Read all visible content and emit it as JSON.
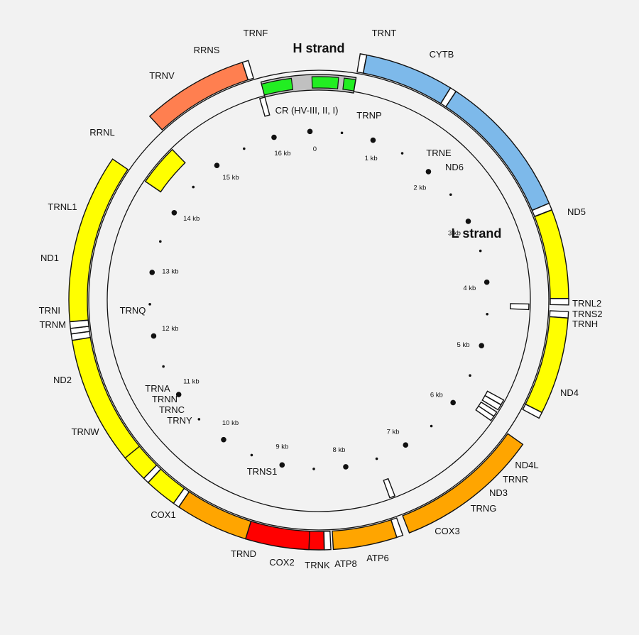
{
  "header": {
    "h_strand": "H strand",
    "l_strand": "L strand"
  },
  "genome_length_kb": 16.569,
  "colors": {
    "rrna": "#7db9ea",
    "complex1": "#ffff00",
    "complex3": "#ff7f50",
    "complex4": "#ffa500",
    "complex5": "#ff0000",
    "control": "#c0c0c0",
    "hv": "#22ee22",
    "trna": "#ffffff"
  },
  "outer_genes": [
    {
      "id": "trnf",
      "label": "TRNF",
      "start": 0.577,
      "end": 0.647,
      "type": "trna"
    },
    {
      "id": "rrns",
      "label": "RRNS",
      "start": 0.648,
      "end": 1.601,
      "type": "rrna"
    },
    {
      "id": "trnv",
      "label": "TRNV",
      "start": 1.602,
      "end": 1.67,
      "type": "trna"
    },
    {
      "id": "rrnl",
      "label": "RRNL",
      "start": 1.671,
      "end": 3.229,
      "type": "rrna"
    },
    {
      "id": "trnl1",
      "label": "TRNL1",
      "start": 3.23,
      "end": 3.304,
      "type": "trna"
    },
    {
      "id": "nd1",
      "label": "ND1",
      "start": 3.307,
      "end": 4.262,
      "type": "complex1"
    },
    {
      "id": "trni",
      "label": "TRNI",
      "start": 4.263,
      "end": 4.331,
      "type": "trna"
    },
    {
      "id": "trnm",
      "label": "TRNM",
      "start": 4.402,
      "end": 4.469,
      "type": "trna"
    },
    {
      "id": "nd2",
      "label": "ND2",
      "start": 4.47,
      "end": 5.511,
      "type": "complex1"
    },
    {
      "id": "trnw",
      "label": "TRNW",
      "start": 5.512,
      "end": 5.579,
      "type": "trna"
    },
    {
      "id": "cox1",
      "label": "COX1",
      "start": 5.904,
      "end": 7.445,
      "type": "complex4"
    },
    {
      "id": "trnd",
      "label": "TRND",
      "start": 7.518,
      "end": 7.585,
      "type": "trna"
    },
    {
      "id": "cox2",
      "label": "COX2",
      "start": 7.586,
      "end": 8.269,
      "type": "complex4"
    },
    {
      "id": "trnk",
      "label": "TRNK",
      "start": 8.295,
      "end": 8.364,
      "type": "trna"
    },
    {
      "id": "atp8",
      "label": "ATP8",
      "start": 8.366,
      "end": 8.572,
      "type": "complex5"
    },
    {
      "id": "atp6",
      "label": "ATP6",
      "start": 8.527,
      "end": 9.207,
      "type": "complex5"
    },
    {
      "id": "cox3",
      "label": "COX3",
      "start": 9.207,
      "end": 9.99,
      "type": "complex4"
    },
    {
      "id": "trng",
      "label": "TRNG",
      "start": 9.991,
      "end": 10.058,
      "type": "trna"
    },
    {
      "id": "nd3",
      "label": "ND3",
      "start": 10.059,
      "end": 10.404,
      "type": "complex1"
    },
    {
      "id": "trnr",
      "label": "TRNR",
      "start": 10.405,
      "end": 10.469,
      "type": "trna"
    },
    {
      "id": "nd4l",
      "label": "ND4L",
      "start": 10.47,
      "end": 10.766,
      "type": "complex1"
    },
    {
      "id": "nd4",
      "label": "ND4",
      "start": 10.76,
      "end": 12.137,
      "type": "complex1"
    },
    {
      "id": "trnh",
      "label": "TRNH",
      "start": 12.138,
      "end": 12.206,
      "type": "trna"
    },
    {
      "id": "trns2",
      "label": "TRNS2",
      "start": 12.207,
      "end": 12.265,
      "type": "trna"
    },
    {
      "id": "trnl2",
      "label": "TRNL2",
      "start": 12.266,
      "end": 12.336,
      "type": "trna"
    },
    {
      "id": "nd5",
      "label": "ND5",
      "start": 12.337,
      "end": 14.148,
      "type": "complex1"
    },
    {
      "id": "cytb",
      "label": "CYTB",
      "start": 14.747,
      "end": 15.887,
      "type": "complex3"
    },
    {
      "id": "trnt",
      "label": "TRNT",
      "start": 15.888,
      "end": 15.953,
      "type": "trna"
    }
  ],
  "inner_genes": [
    {
      "id": "trnp",
      "label": "TRNP",
      "start": 15.956,
      "end": 16.023,
      "type": "trna"
    },
    {
      "id": "trnq",
      "label": "TRNQ",
      "start": 4.329,
      "end": 4.4,
      "type": "trna"
    },
    {
      "id": "trna",
      "label": "TRNA",
      "start": 5.587,
      "end": 5.655,
      "type": "trna"
    },
    {
      "id": "trnn",
      "label": "TRNN",
      "start": 5.657,
      "end": 5.729,
      "type": "trna"
    },
    {
      "id": "trnc",
      "label": "TRNC",
      "start": 5.761,
      "end": 5.826,
      "type": "trna"
    },
    {
      "id": "trny",
      "label": "TRNY",
      "start": 5.826,
      "end": 5.891,
      "type": "trna"
    },
    {
      "id": "trns1",
      "label": "TRNS1",
      "start": 7.446,
      "end": 7.514,
      "type": "trna"
    },
    {
      "id": "trne",
      "label": "TRNE",
      "start": 14.149,
      "end": 14.217,
      "type": "trna"
    },
    {
      "id": "nd6",
      "label": "ND6",
      "start": 14.149,
      "end": 14.673,
      "type": "complex1"
    }
  ],
  "control_region": {
    "label": "CR (HV-III, II, I)",
    "start": 16.024,
    "end": 0.576,
    "hv": [
      {
        "id": "hv1",
        "start": 16.024,
        "end": 16.383
      },
      {
        "id": "hv2",
        "start": 0.057,
        "end": 0.372
      },
      {
        "id": "hv3",
        "start": 0.438,
        "end": 0.574
      }
    ]
  },
  "kb_marks": [
    {
      "kb": 0,
      "label": "0"
    },
    {
      "kb": 1,
      "label": "1 kb"
    },
    {
      "kb": 2,
      "label": "2 kb"
    },
    {
      "kb": 3,
      "label": "3 kb"
    },
    {
      "kb": 4,
      "label": "4 kb"
    },
    {
      "kb": 5,
      "label": "5 kb"
    },
    {
      "kb": 6,
      "label": "6 kb"
    },
    {
      "kb": 7,
      "label": "7 kb"
    },
    {
      "kb": 8,
      "label": "8 kb"
    },
    {
      "kb": 9,
      "label": "9 kb"
    },
    {
      "kb": 10,
      "label": "10 kb"
    },
    {
      "kb": 11,
      "label": "11 kb"
    },
    {
      "kb": 12,
      "label": "12 kb"
    },
    {
      "kb": 13,
      "label": "13 kb"
    },
    {
      "kb": 14,
      "label": "14 kb"
    },
    {
      "kb": 15,
      "label": "15 kb"
    },
    {
      "kb": 16,
      "label": "16 kb"
    }
  ]
}
